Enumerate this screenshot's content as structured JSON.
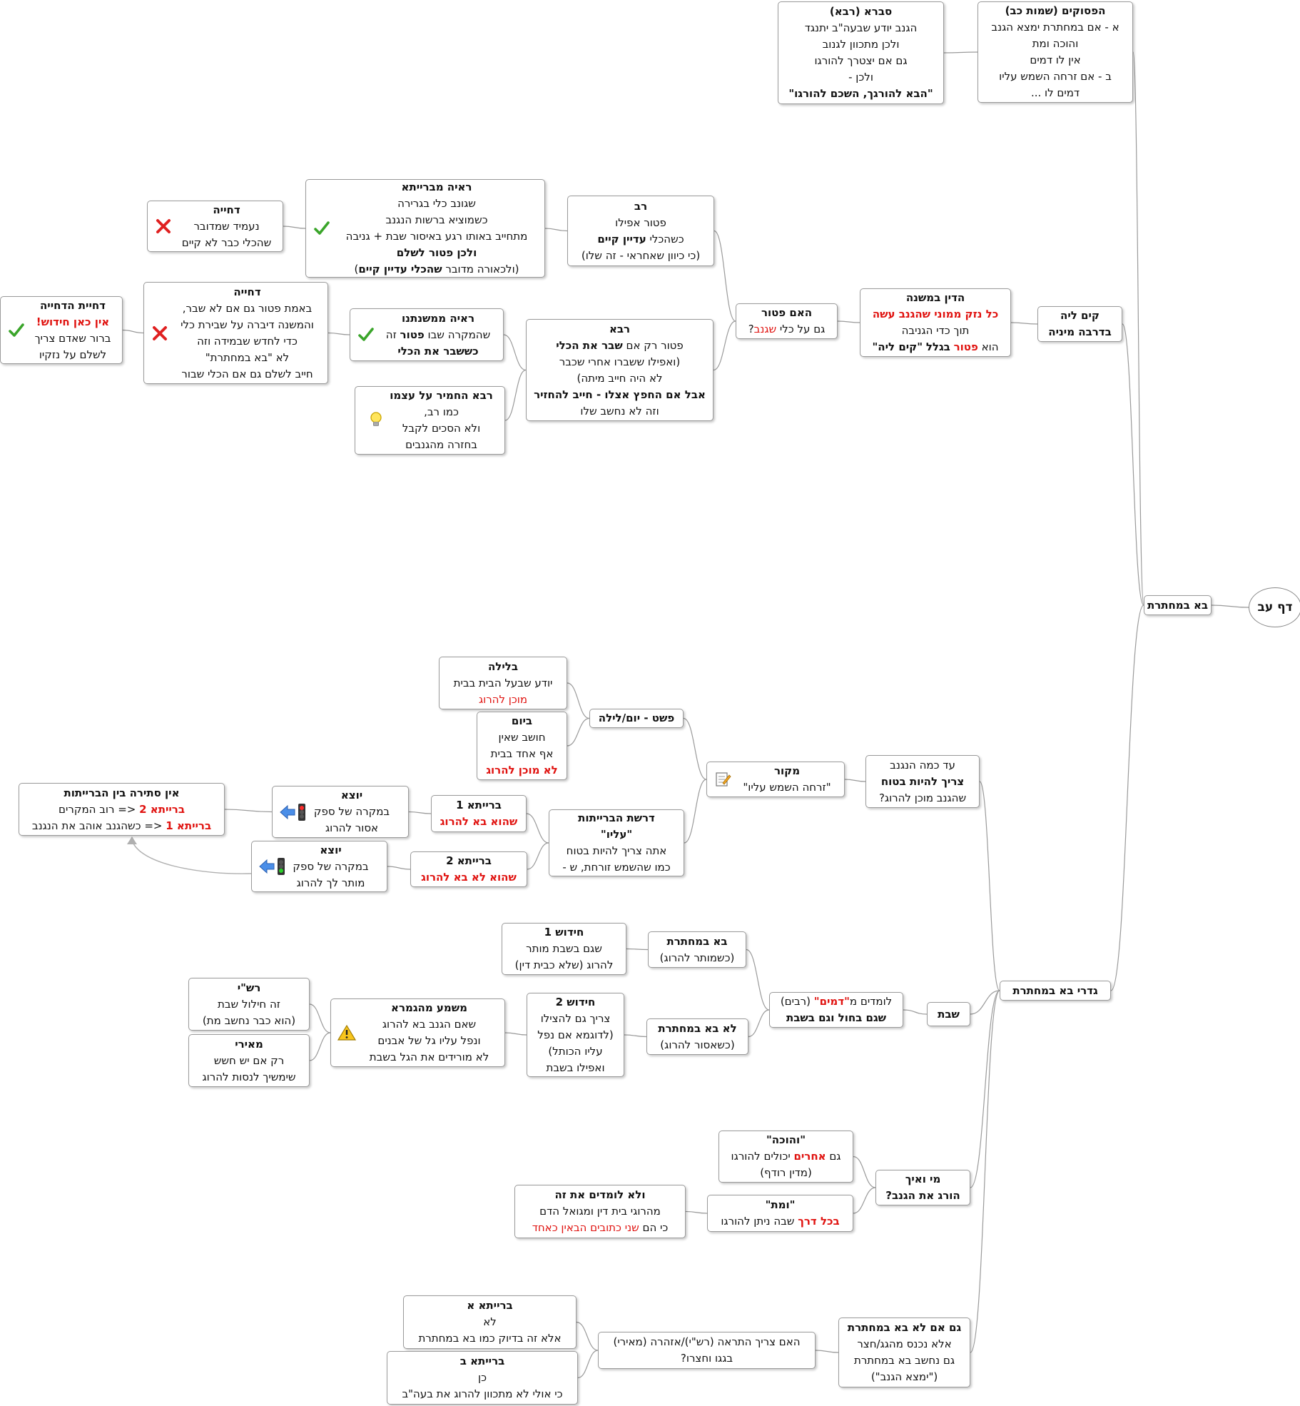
{
  "title": "דף עב",
  "nodes": [
    {
      "id": "root",
      "text": [
        "דף עב"
      ]
    },
    {
      "id": "ba",
      "text": [
        "בא במחתרת"
      ]
    },
    {
      "id": "pesukim",
      "text": [
        "הפסוקים (שמות כב)",
        "א - אם במחתרת ימצא הגנב",
        "והוכה ומת",
        "אין לו דמים",
        "ב - אם זרחה השמש עליו",
        "דמים לו ..."
      ]
    },
    {
      "id": "svara",
      "text": [
        "סברא (רבא)",
        "הגנב יודע שבעה\"ב יתנגד",
        "ולכן מתכוון לגנוב",
        "גם  אם יצטרך להורגו",
        "ולכן -",
        "\"הבא להורגך, השכם להורגו\""
      ]
    },
    {
      "id": "kamlei",
      "text": [
        "קים ליה",
        "בדרבה מיניה"
      ]
    },
    {
      "id": "mishna",
      "text": [
        "הדין במשנה",
        "כל נזק ממוני שהגנב עשה",
        "תוך כדי הגניבה",
        "הוא פטור בגלל \"קים ליה\""
      ]
    },
    {
      "id": "patur",
      "text": [
        "האם פטור",
        "גם על כלי שגנב?"
      ]
    },
    {
      "id": "rav",
      "text": [
        "רב",
        "פטור אפילו",
        "כשהכלי עדיין קיים",
        "(כי כיוון שאחראי - זה שלו)"
      ]
    },
    {
      "id": "raya1",
      "text": [
        "ראיה מברייתא",
        "שגונב כלי בגרירה",
        "כשמוציא ברשות הנגנב",
        "מתחייב באותו רגע באיסור שבת + גניבה",
        "ולכן פטור לשלם",
        "(ולכאורה מדובר שהכלי עדיין קיים)"
      ]
    },
    {
      "id": "dchiya1",
      "text": [
        "דחייה",
        "נעמיד שמדובר",
        "שהכלי כבר לא קיים"
      ]
    },
    {
      "id": "rava",
      "text": [
        "רבא",
        "פטור רק אם שבר את הכלי",
        "(ואפילו ששברו אחרי שכבר",
        "לא היה חייב מיתה)",
        "אבל אם החפץ אצלו - חייב להחזיר",
        "וזה לא נחשב שלו"
      ]
    },
    {
      "id": "raya2",
      "text": [
        "ראיה ממשנתנו",
        "שהמקרה שבו פטור  זה",
        "כששבר את הכלי"
      ]
    },
    {
      "id": "dchiya2",
      "text": [
        "דחייה",
        "באמת פטור גם אם לא שבר,",
        "והמשנה דיברה על שבירת כלי",
        "כדי לחדש שבמידה וזה",
        "לא \"בא במחתרת\"",
        "חייב לשלם גם אם הכלי שבור"
      ]
    },
    {
      "id": "dchiyat",
      "text": [
        "דחיית הדחייה",
        "אין כאן חידוש!",
        "ברור שאדם צריך",
        "לשלם על נזקיו"
      ]
    },
    {
      "id": "rava2",
      "text": [
        "רבא החמיר על  עצמו",
        "כמו רב,",
        "ולא הסכים לקבל",
        "בחזרה מהגנבים"
      ]
    },
    {
      "id": "gidrei",
      "text": [
        "גדרי בא במחתרת"
      ]
    },
    {
      "id": "adkama",
      "text": [
        "עד כמה הנגנב",
        "צריך להיות בטוח",
        "שהגנב מוכן להרוג?"
      ]
    },
    {
      "id": "makor",
      "text": [
        "מקור",
        "\"זרחה השמש עליו\""
      ]
    },
    {
      "id": "pshat",
      "text": [
        "פשט - יום/לילה"
      ]
    },
    {
      "id": "layla",
      "text": [
        "בלילה",
        "יודע שבעל הבית בבית",
        "מוכן להרוג"
      ]
    },
    {
      "id": "yom",
      "text": [
        "ביום",
        "חושב שאין",
        "אף אחד בבית",
        "לא מוכן להרוג"
      ]
    },
    {
      "id": "drasha",
      "text": [
        "דרשת הברייתות",
        "\"עליו\"",
        "אתה צריך להיות בטוח",
        "כמו שהשמש זורחת, ש -"
      ]
    },
    {
      "id": "b1",
      "text": [
        "ברייתא 1",
        "שהוא בא להרוג"
      ]
    },
    {
      "id": "b2",
      "text": [
        "ברייתא 2",
        "שהוא לא בא להרוג"
      ]
    },
    {
      "id": "yotze1",
      "text": [
        "יוצא",
        "במקרה של ספק",
        "אסור להרוג"
      ]
    },
    {
      "id": "yotze2",
      "text": [
        "יוצא",
        "במקרה של ספק",
        "מותר לך להרוג"
      ]
    },
    {
      "id": "ein",
      "text": [
        "אין סתירה בין הברייתות",
        "ברייתא 2 <= רוב המקרים",
        "ברייתא 1 <= כשהגנב אוהב את הנגנב"
      ]
    },
    {
      "id": "shabat",
      "text": [
        "שבת"
      ]
    },
    {
      "id": "lomdim",
      "text": [
        "לומדים מ\"דמים\" (רבים)",
        "שגם בחול וגם בשבת"
      ]
    },
    {
      "id": "ba2",
      "text": [
        "בא במחתרת",
        "(כשמותר להרוג)"
      ]
    },
    {
      "id": "lo_ba",
      "text": [
        "לא בא במחתרת",
        "(כשאסור להרוג)"
      ]
    },
    {
      "id": "hidush1",
      "text": [
        "חידוש 1",
        "שגם בשבת מותר",
        "להרוג (שלא כבית דין)"
      ]
    },
    {
      "id": "hidush2",
      "text": [
        "חידוש 2",
        "צריך גם להצילו",
        "(לדוגמא אם נפל",
        "עליו הכותל)",
        "ואפילו בשבת"
      ]
    },
    {
      "id": "mashma",
      "text": [
        "משמע מהגמרא",
        "שאם הגנב בא להרוג",
        "ונפל עליו גל של אבנים",
        "לא מורידים את הגל בשבת"
      ]
    },
    {
      "id": "rashi",
      "text": [
        "רש\"י",
        "זה חילול שבת",
        "(הוא כבר נחשב מת)"
      ]
    },
    {
      "id": "meiri",
      "text": [
        "מאירי",
        "רק אם יש חשש",
        "שימשיך לנסות להרוג"
      ]
    },
    {
      "id": "mi",
      "text": [
        "מי ואיך",
        "הורג את הגנב?"
      ]
    },
    {
      "id": "vehuka",
      "text": [
        "\"והוכה\"",
        "גם אחרים יכולים להורגו",
        "(מדין רודף)"
      ]
    },
    {
      "id": "vamet",
      "text": [
        "\"ומת\"",
        "בכל דרך שבה ניתן להורגו"
      ]
    },
    {
      "id": "velo",
      "text": [
        "ולא לומדים את זה",
        "מהרוגי בית דין ומגואל הדם",
        "כי הם שני כתובים הבאין כאחד"
      ]
    },
    {
      "id": "gam",
      "text": [
        "גם אם לא בא במחתרת",
        "אלא נכנס מהגג/חצר",
        "גם נחשב בא במחתרת",
        "(\"ימצא הגנב\")"
      ]
    },
    {
      "id": "hatraa",
      "text": [
        "האם צריך התראה (רש\"י)/אזהרה (מאירי)",
        "בגגו וחצרו?"
      ]
    },
    {
      "id": "ba_a",
      "text": [
        "ברייתא א",
        "לא",
        "אלא זה בדיוק כמו בא במחתרת"
      ]
    },
    {
      "id": "ba_b",
      "text": [
        "ברייתא ב",
        "כן",
        "כי אולי לא מתכוון להרוג את בעה\"ב"
      ]
    }
  ],
  "icons": {
    "raya1": "check-icon",
    "dchiya1": "cross-icon",
    "raya2": "check-icon",
    "dchiya2": "cross-icon",
    "dchiyat": "check-icon",
    "rava2": "lightbulb-icon",
    "makor": "note-icon",
    "yotze1": "red-light-arrow-icon",
    "yotze2": "green-light-arrow-icon",
    "mashma": "warning-icon"
  },
  "colors": {
    "emphasis": "#e0120f",
    "line": "#9a9a9a",
    "check": "#3aa52a",
    "cross": "#e02020"
  }
}
